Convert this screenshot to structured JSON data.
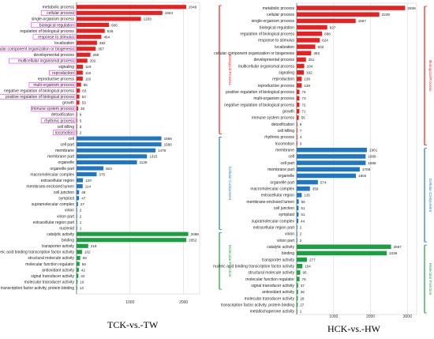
{
  "captions": {
    "left": "TCK-vs.-TW",
    "right": "HCK-vs.-HW"
  },
  "colors": {
    "biological": "#e8201f",
    "cellular": "#1f77c4",
    "molecular": "#1aa040",
    "label_highlight": "#ff00ff"
  },
  "categories": {
    "biological": "Biological Process",
    "cellular": "Cellular Component",
    "molecular": "Molecular Function"
  },
  "chart_data": [
    {
      "type": "bar",
      "orientation": "horizontal",
      "title": "TCK-vs.-TW",
      "x_ticks": [
        1000,
        2000
      ],
      "xlim": [
        0,
        2300
      ],
      "groups": [
        {
          "key": "biological",
          "name": "Biological Process",
          "labels": [
            "metabolic process",
            "cellular process",
            "single-organism process",
            "biological regulation",
            "regulation of biological process",
            "response to stimulus",
            "localization",
            "cellular component organization or biogenesis",
            "developmental process",
            "multicellular organismal process",
            "signaling",
            "reproduction",
            "reproductive process",
            "multi-organism process",
            "negative regulation of biological process",
            "positive regulation of biological process",
            "growth",
            "immune system process",
            "detoxification",
            "rhythmic process",
            "cell killing",
            "locomotion"
          ],
          "values": [
            2049,
            1604,
            1203,
            606,
            526,
            464,
            382,
            357,
            259,
            202,
            119,
            116,
            116,
            85,
            63,
            54,
            53,
            30,
            9,
            5,
            3,
            2
          ]
        },
        {
          "key": "cellular",
          "name": "Cellular Component",
          "labels": [
            "cell",
            "cell part",
            "membrane",
            "membrane part",
            "organelle",
            "organelle part",
            "macromolecular complex",
            "extracellular region",
            "membrane-enclosed lumen",
            "cell junction",
            "symplast",
            "supramolecular complex",
            "virion",
            "virion part",
            "extracellular region part",
            "nucleoid"
          ],
          "values": [
            1586,
            1586,
            1476,
            1315,
            1129,
            503,
            375,
            120,
            114,
            48,
            47,
            27,
            2,
            2,
            1,
            1
          ]
        },
        {
          "key": "molecular",
          "name": "Molecular Function",
          "labels": [
            "catalytic activity",
            "binding",
            "transporter activity",
            "nucleic acid binding transcription factor activity",
            "structural molecule activity",
            "molecular function regulator",
            "antioxidant activity",
            "signal transducer activity",
            "molecular transducer activity",
            "transcription factor activity, protein binding"
          ],
          "values": [
            2088,
            2052,
            218,
            102,
            69,
            56,
            42,
            34,
            19,
            13
          ]
        }
      ]
    },
    {
      "type": "bar",
      "orientation": "horizontal",
      "title": "HCK-vs.-HW",
      "x_ticks": [
        1000,
        2000,
        3000
      ],
      "xlim": [
        0,
        3250
      ],
      "groups": [
        {
          "key": "biological",
          "name": "Biological Process",
          "labels": [
            "metabolic process",
            "cellular process",
            "single-organism process",
            "biological regulation",
            "regulation of biological process",
            "response to stimulus",
            "localization",
            "cellular component organization or biogenesis",
            "developmental process",
            "multicellular organismal process",
            "signaling",
            "reproduction",
            "reproductive process",
            "positive regulation of biological process",
            "multi-organism process",
            "negative regulation of biological process",
            "growth",
            "immune system process",
            "detoxification",
            "cell killing",
            "rhythmic process",
            "locomotion"
          ],
          "values": [
            2938,
            2239,
            1597,
            827,
            688,
            624,
            503,
            393,
            251,
            204,
            192,
            136,
            136,
            74,
            73,
            72,
            71,
            55,
            9,
            7,
            4,
            3
          ]
        },
        {
          "key": "cellular",
          "name": "Cellular Component",
          "labels": [
            "membrane",
            "cell",
            "cell part",
            "membrane part",
            "organelle",
            "organelle part",
            "macromolecular complex",
            "extracellular region",
            "membrane-enclosed lumen",
            "cell junction",
            "symplast",
            "supramolecular complex",
            "extracellular region part",
            "virion",
            "virion part"
          ],
          "values": [
            1901,
            1868,
            1868,
            1709,
            1604,
            574,
            359,
            135,
            56,
            51,
            51,
            44,
            2,
            2,
            2
          ]
        },
        {
          "key": "molecular",
          "name": "Molecular Function",
          "labels": [
            "catalytic activity",
            "binding",
            "transporter activity",
            "nucleic acid binding transcription factor activity",
            "structural molecule activity",
            "molecular function regulator",
            "signal transducer activity",
            "antioxidant activity",
            "molecular transducer activity",
            "transcription factor activity, protein binding",
            "metallochaperone activity"
          ],
          "values": [
            2557,
            2439,
            277,
            154,
            95,
            76,
            37,
            36,
            29,
            27,
            1
          ]
        }
      ]
    }
  ]
}
